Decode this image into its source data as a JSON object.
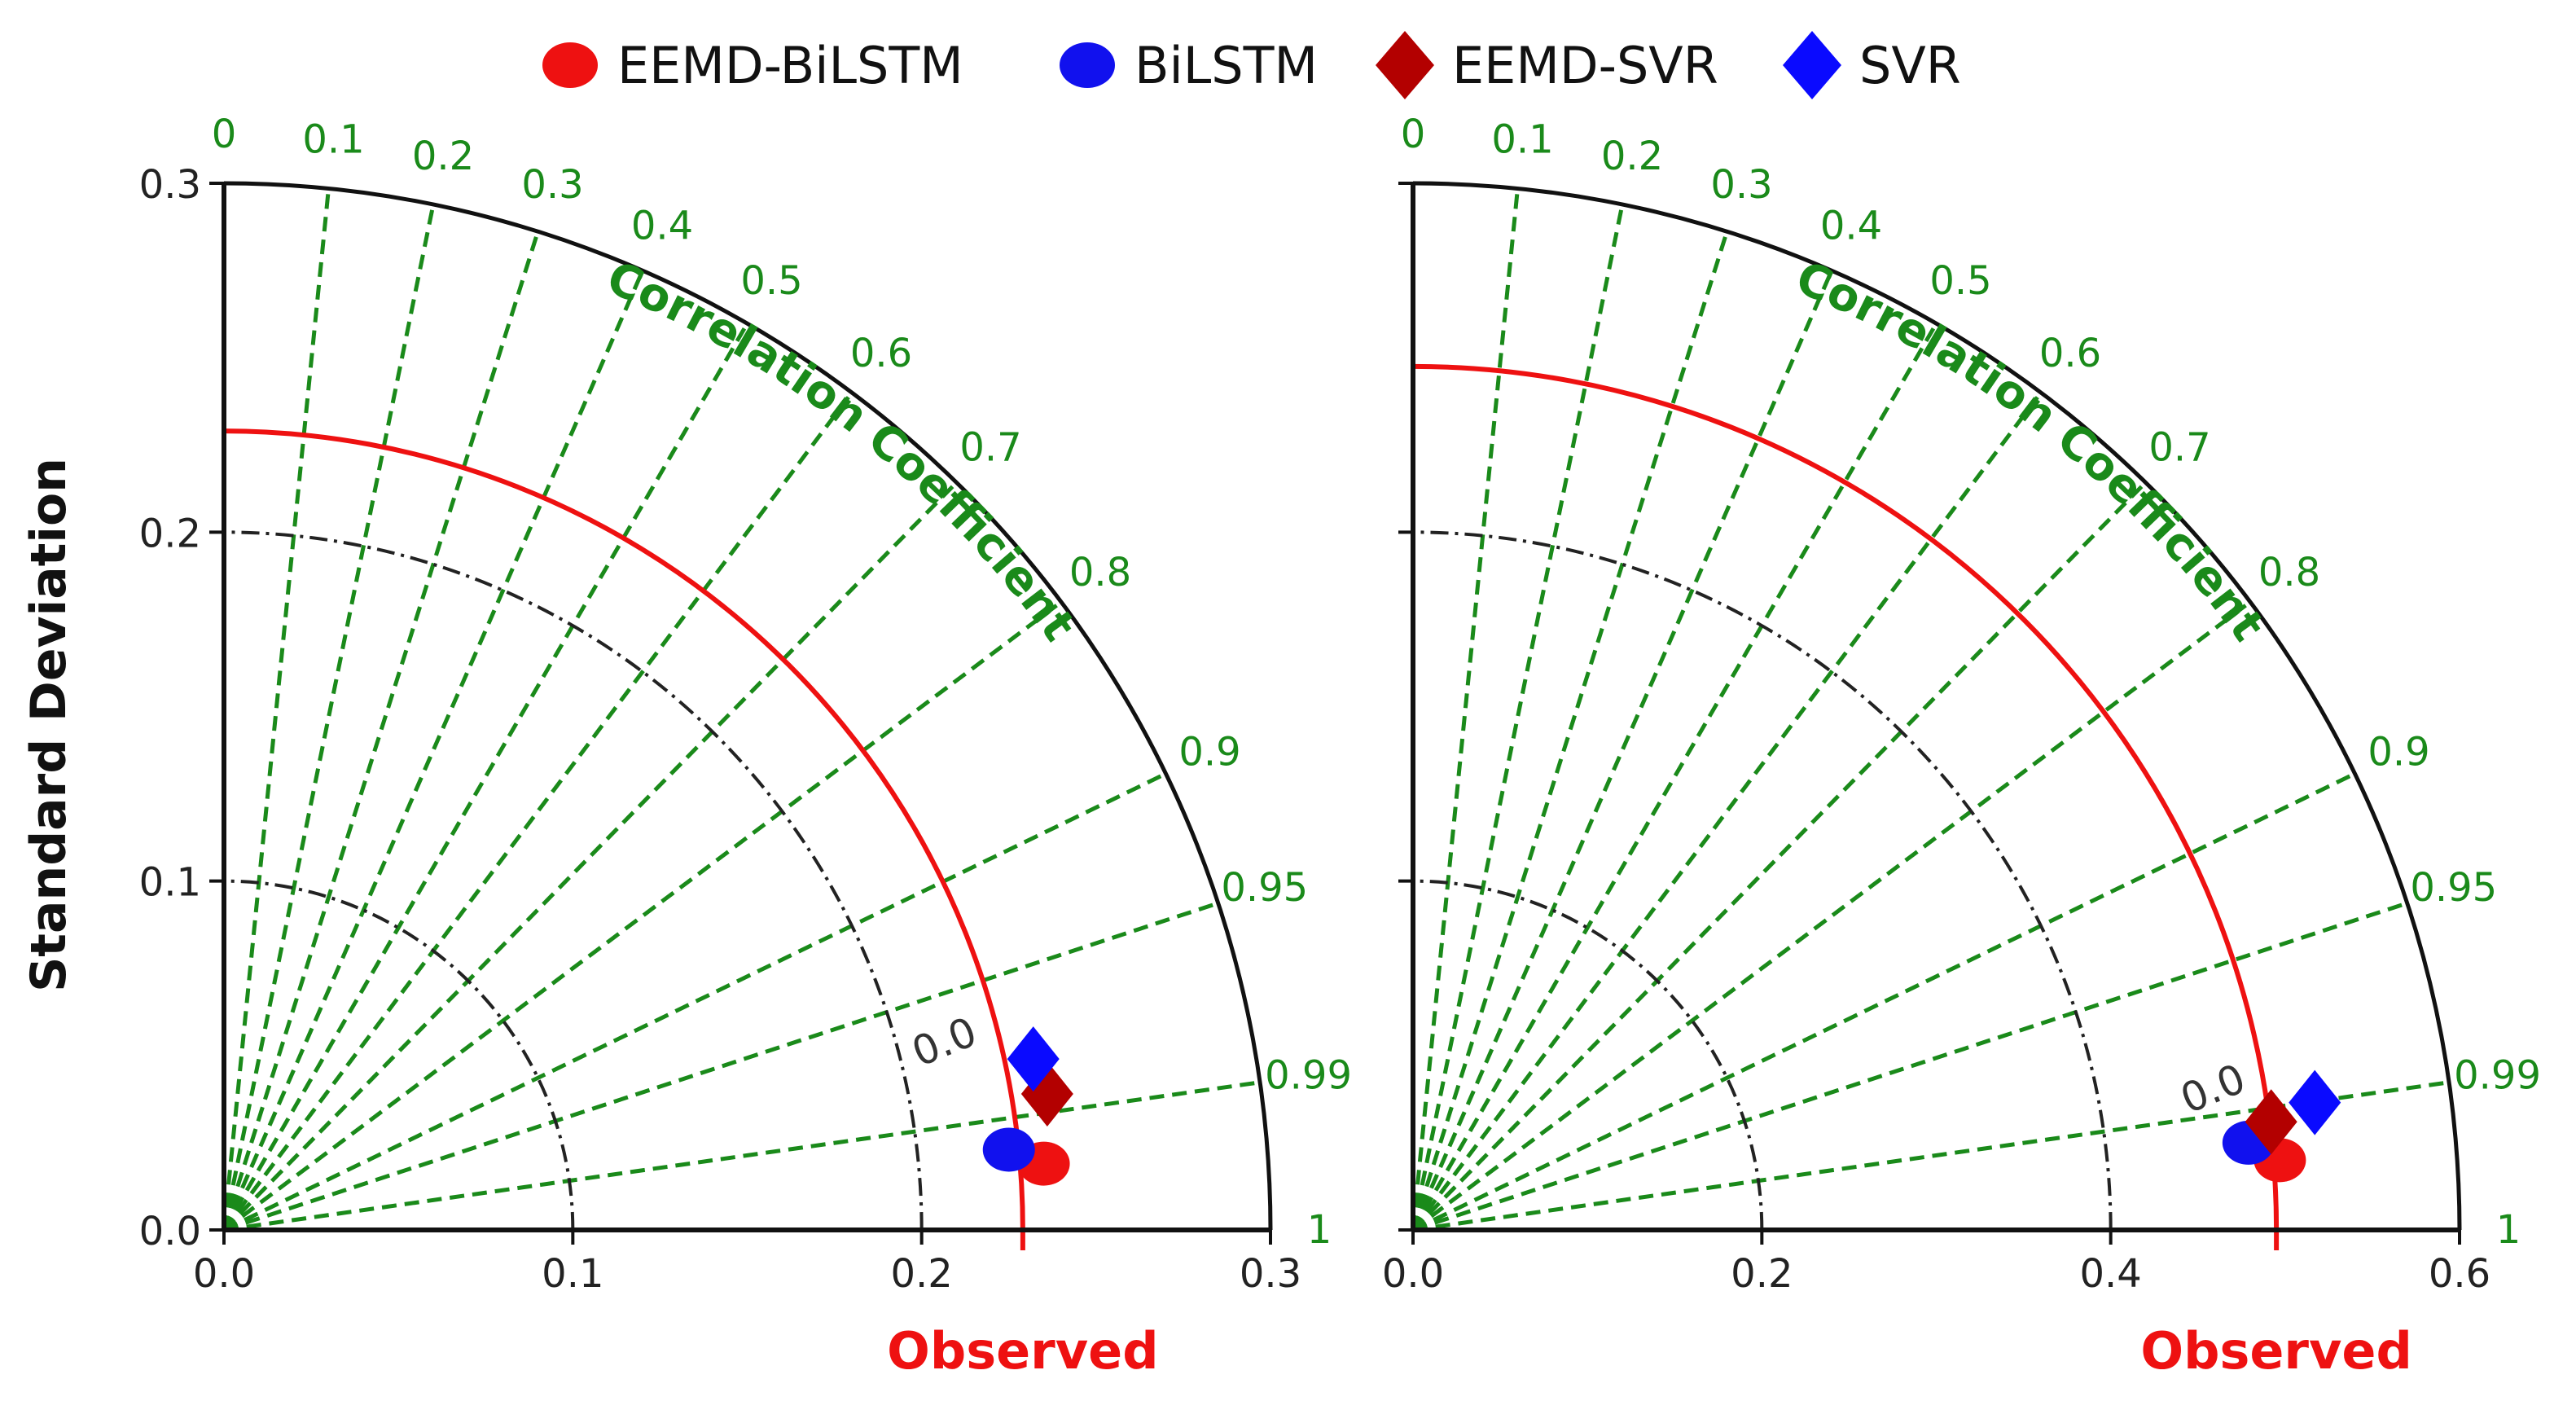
{
  "colors": {
    "eemd_bilstm": "#ee1111",
    "bilstm": "#1111ee",
    "eemd_svr": "#b30000",
    "svr": "#0a0aff",
    "correlation": "#1a8a1a",
    "observed": "#ee1111",
    "axis": "#111111"
  },
  "legend": [
    {
      "name": "EEMD-BiLSTM",
      "marker": "circle",
      "color": "#ee1111"
    },
    {
      "name": "BiLSTM",
      "marker": "circle",
      "color": "#1111ee"
    },
    {
      "name": "EEMD-SVR",
      "marker": "diamond",
      "color": "#b30000"
    },
    {
      "name": "SVR",
      "marker": "diamond",
      "color": "#0a0aff"
    }
  ],
  "chart_data": [
    {
      "type": "taylor_diagram",
      "ylabel": "Standard Deviation",
      "xlabel": "Observed",
      "correlation_label": "Correlation Coefficient",
      "std_max": 0.3,
      "x_ticks": [
        "0.0",
        "0.1",
        "0.2",
        "0.3"
      ],
      "y_ticks": [
        "0.0",
        "0.1",
        "0.2",
        "0.3"
      ],
      "correlation_ticks": [
        "0",
        "0.1",
        "0.2",
        "0.3",
        "0.4",
        "0.5",
        "0.6",
        "0.7",
        "0.8",
        "0.9",
        "0.95",
        "0.99",
        "1"
      ],
      "correlation_values": [
        0,
        0.1,
        0.2,
        0.3,
        0.4,
        0.5,
        0.6,
        0.7,
        0.8,
        0.9,
        0.95,
        0.99,
        1
      ],
      "reference_std": 0.229,
      "rmsd_contours": [
        0.1,
        0.2
      ],
      "rmsd_label": "0.0",
      "points": [
        {
          "name": "EEMD-BiLSTM",
          "x": 0.235,
          "y": 0.019
        },
        {
          "name": "BiLSTM",
          "x": 0.225,
          "y": 0.023
        },
        {
          "name": "EEMD-SVR",
          "x": 0.236,
          "y": 0.039
        },
        {
          "name": "SVR",
          "x": 0.232,
          "y": 0.049
        }
      ]
    },
    {
      "type": "taylor_diagram",
      "ylabel": "",
      "xlabel": "Observed",
      "correlation_label": "Correlation Coefficient",
      "std_max": 0.6,
      "x_ticks": [
        "0.0",
        "0.2",
        "0.4",
        "0.6"
      ],
      "y_ticks": [],
      "correlation_ticks": [
        "0",
        "0.1",
        "0.2",
        "0.3",
        "0.4",
        "0.5",
        "0.6",
        "0.7",
        "0.8",
        "0.9",
        "0.95",
        "0.99",
        "1"
      ],
      "correlation_values": [
        0,
        0.1,
        0.2,
        0.3,
        0.4,
        0.5,
        0.6,
        0.7,
        0.8,
        0.9,
        0.95,
        0.99,
        1
      ],
      "reference_std": 0.495,
      "rmsd_contours": [
        0.2,
        0.4
      ],
      "rmsd_label": "0.0",
      "points": [
        {
          "name": "EEMD-BiLSTM",
          "x": 0.497,
          "y": 0.04
        },
        {
          "name": "BiLSTM",
          "x": 0.479,
          "y": 0.05
        },
        {
          "name": "EEMD-SVR",
          "x": 0.492,
          "y": 0.062
        },
        {
          "name": "SVR",
          "x": 0.517,
          "y": 0.073
        }
      ]
    }
  ]
}
